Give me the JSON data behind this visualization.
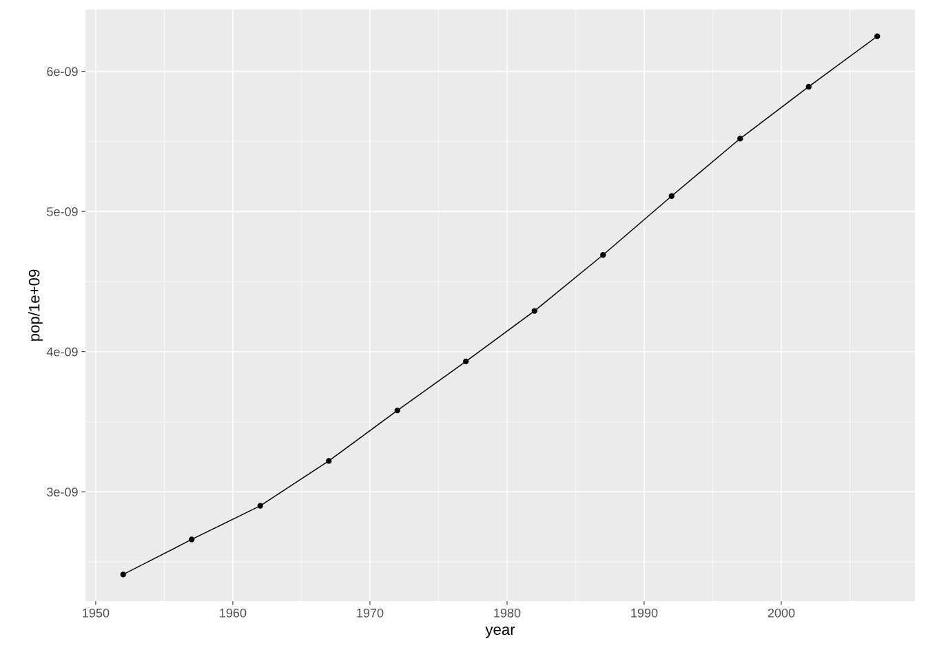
{
  "chart_data": {
    "type": "line",
    "xlabel": "year",
    "ylabel": "pop/1e+09",
    "x": [
      1952,
      1957,
      1962,
      1967,
      1972,
      1977,
      1982,
      1987,
      1992,
      1997,
      2002,
      2007
    ],
    "series": [
      {
        "color": "#000000",
        "values": [
          2.41e-09,
          2.66e-09,
          2.9e-09,
          3.22e-09,
          3.58e-09,
          3.93e-09,
          4.29e-09,
          4.69e-09,
          5.11e-09,
          5.52e-09,
          5.89e-09,
          6.25e-09
        ]
      }
    ],
    "xlim": [
      1949.25,
      2009.75
    ],
    "xticks": [
      1950,
      1960,
      1970,
      1980,
      1990,
      2000
    ],
    "ylim": [
      2.22e-09,
      6.44e-09
    ],
    "yticks": [
      {
        "value": 3e-09,
        "label": "3e-09"
      },
      {
        "value": 4e-09,
        "label": "4e-09"
      },
      {
        "value": 5e-09,
        "label": "5e-09"
      },
      {
        "value": 6e-09,
        "label": "6e-09"
      }
    ],
    "grid": true,
    "marker": "circle",
    "line_style": "solid"
  }
}
